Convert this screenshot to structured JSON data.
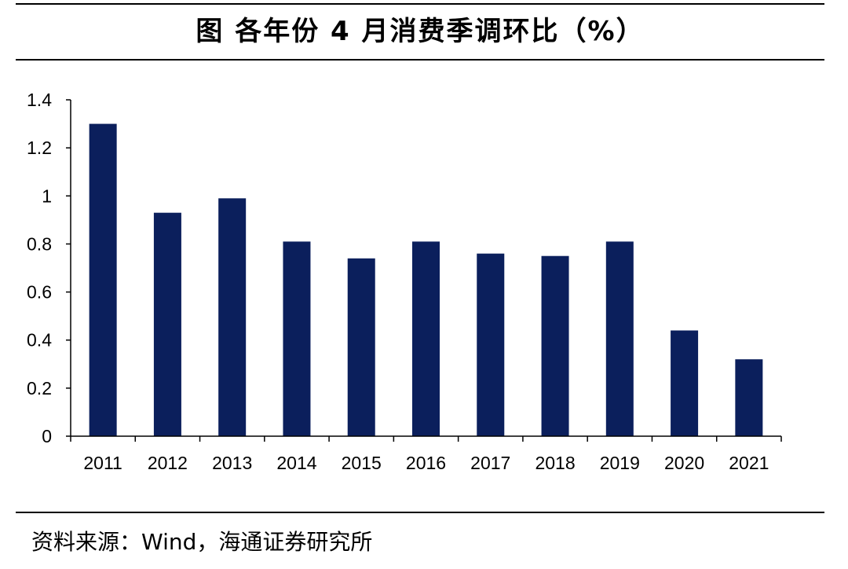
{
  "figure": {
    "title": "图  各年份 4 月消费季调环比（%）",
    "source": "资料来源：Wind，海通证券研究所"
  },
  "chart_data": {
    "type": "bar",
    "title": "图  各年份 4 月消费季调环比（%）",
    "xlabel": "",
    "ylabel": "",
    "categories": [
      "2011",
      "2012",
      "2013",
      "2014",
      "2015",
      "2016",
      "2017",
      "2018",
      "2019",
      "2020",
      "2021"
    ],
    "series": [
      {
        "name": "4月消费季调环比",
        "values": [
          1.3,
          0.93,
          0.99,
          0.81,
          0.74,
          0.81,
          0.76,
          0.75,
          0.81,
          0.44,
          0.32
        ]
      }
    ],
    "ylim": [
      0,
      1.4
    ],
    "yticks": [
      0,
      0.2,
      0.4,
      0.6,
      0.8,
      1.0,
      1.2,
      1.4
    ],
    "ytick_labels": [
      "0",
      "0.2",
      "0.4",
      "0.6",
      "0.8",
      "1",
      "1.2",
      "1.4"
    ],
    "grid": false,
    "legend": "none",
    "colors": {
      "bar": "#0b1f5c",
      "axis": "#000000"
    }
  }
}
